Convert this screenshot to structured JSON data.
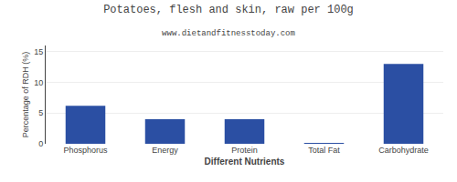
{
  "chart_data": {
    "type": "bar",
    "title": "Potatoes, flesh and skin, raw per 100g",
    "subtitle": "www.dietandfitnesstoday.com",
    "xlabel": "Different Nutrients",
    "ylabel": "Percentage of RDH (%)",
    "categories": [
      "Phosphorus",
      "Energy",
      "Protein",
      "Total Fat",
      "Carbohydrate"
    ],
    "values": [
      6.2,
      4.0,
      4.0,
      0.1,
      13.0
    ],
    "color": "#2b4fa3",
    "ylim": [
      0,
      16
    ],
    "yticks": [
      0,
      5,
      10,
      15
    ],
    "grid": true
  }
}
